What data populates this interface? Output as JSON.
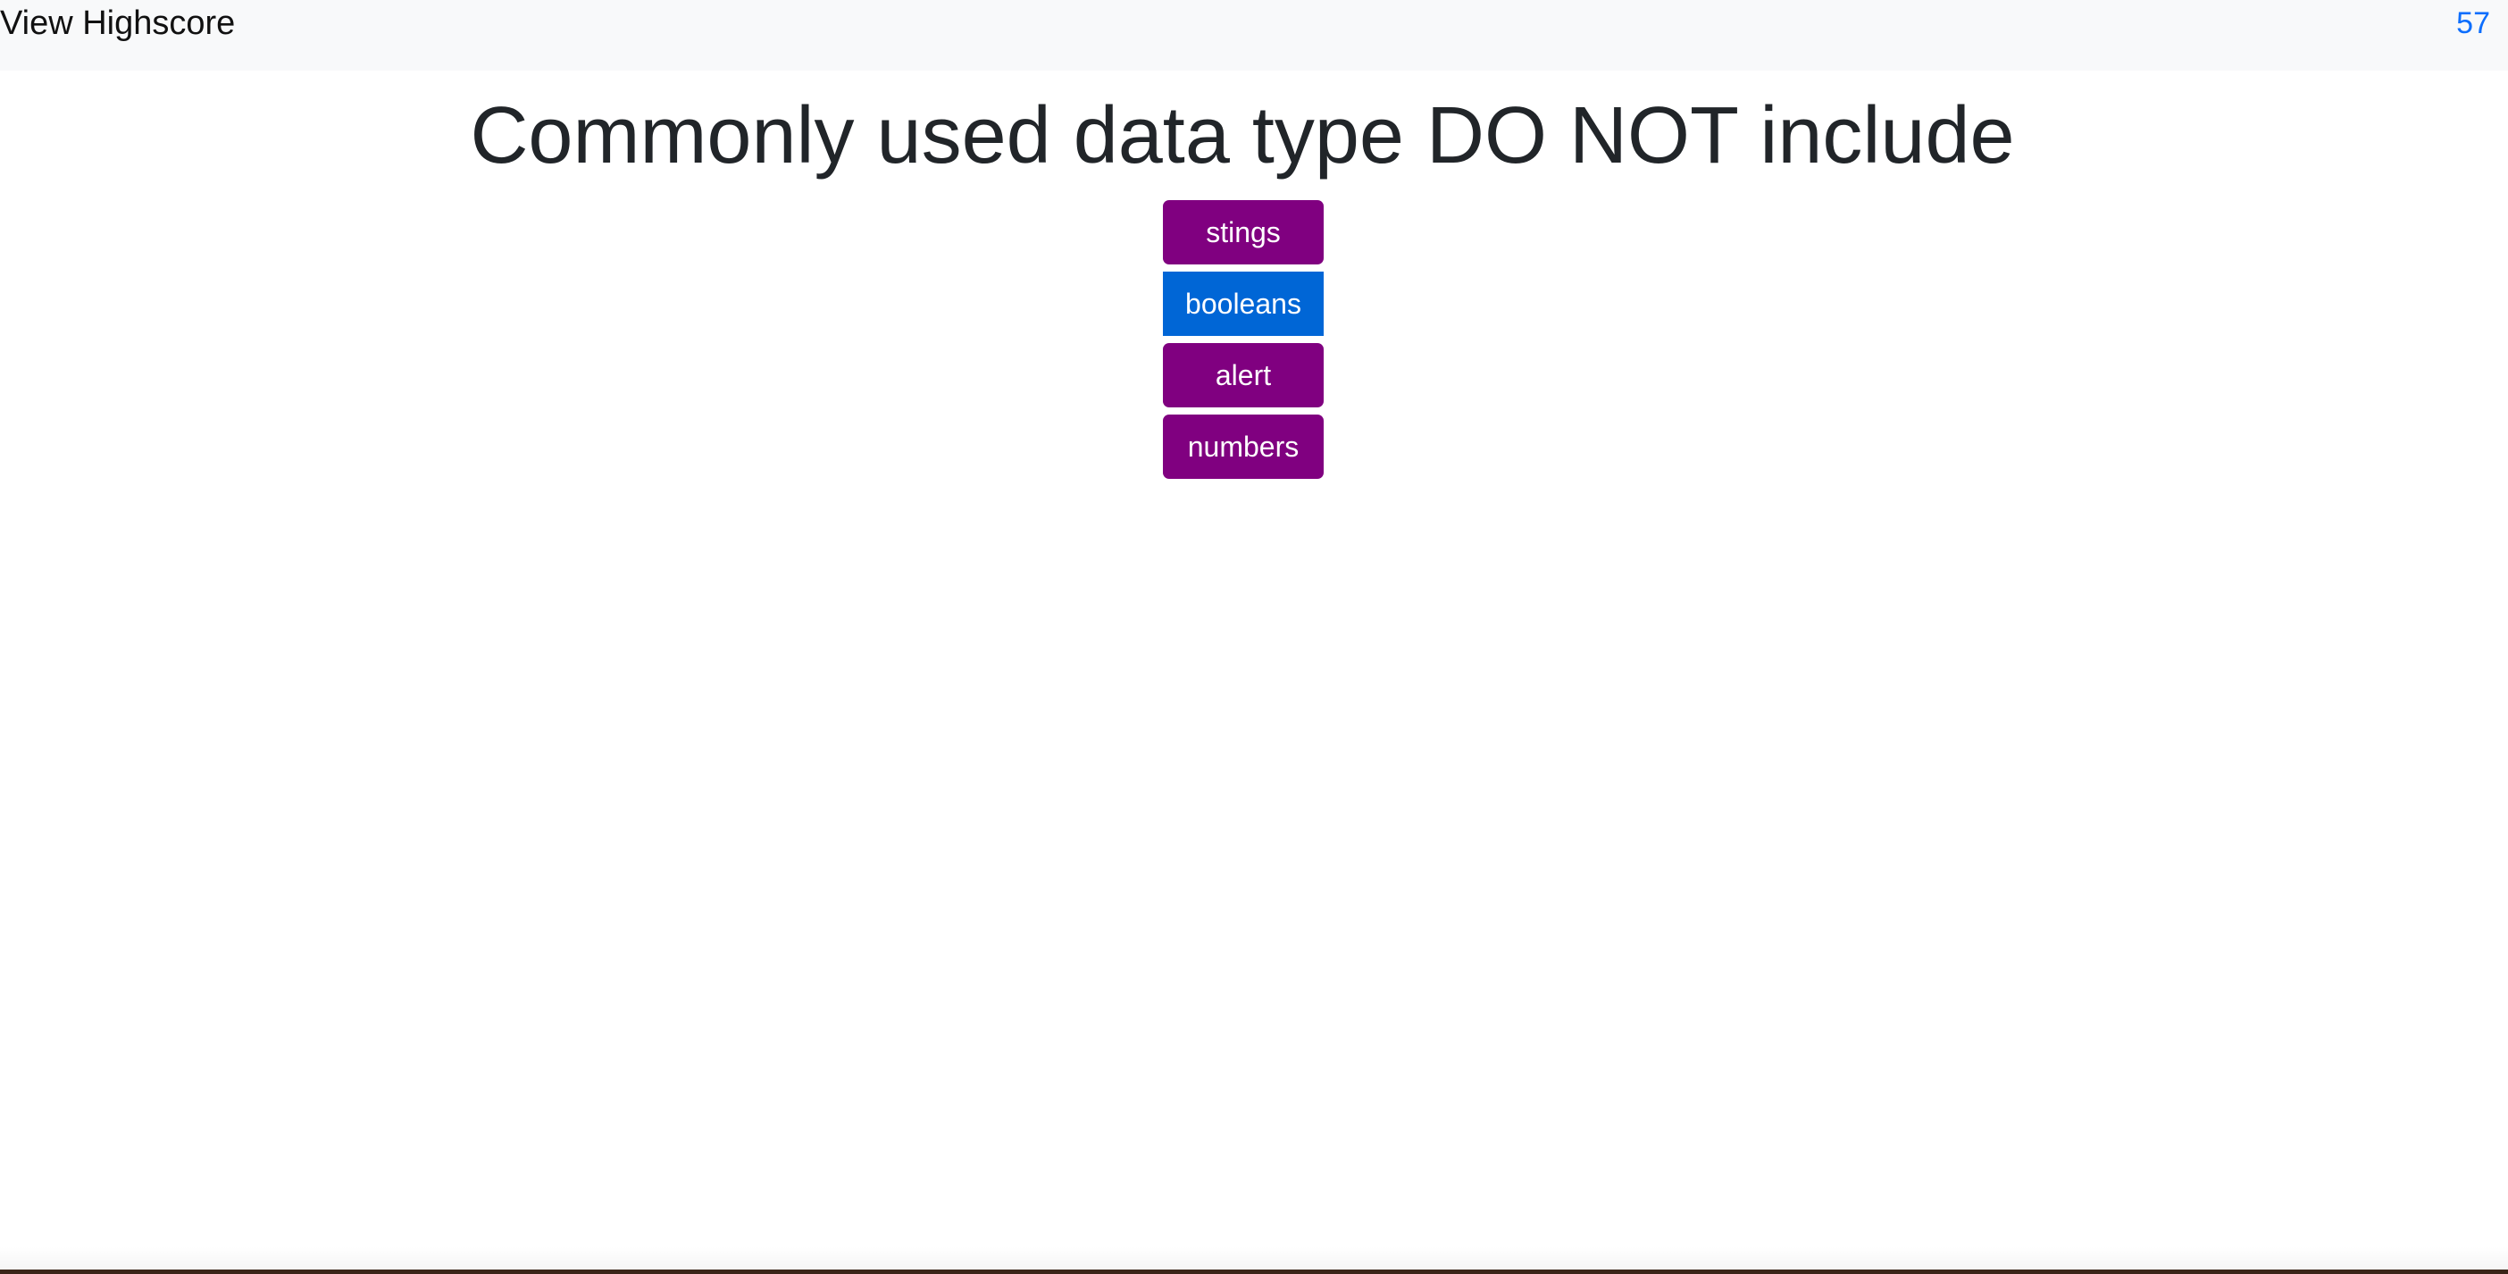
{
  "header": {
    "highscore_link": "View Highscore",
    "timer": "57"
  },
  "quiz": {
    "question": "Commonly used data type DO NOT include",
    "answers": [
      {
        "label": "stings"
      },
      {
        "label": "booleans"
      },
      {
        "label": "alert"
      },
      {
        "label": "numbers"
      }
    ]
  },
  "colors": {
    "answer_bg": "#800080",
    "answer_hover_bg": "#0066d6",
    "timer": "#0d6efd",
    "navbar_bg": "#f8f9fa"
  }
}
